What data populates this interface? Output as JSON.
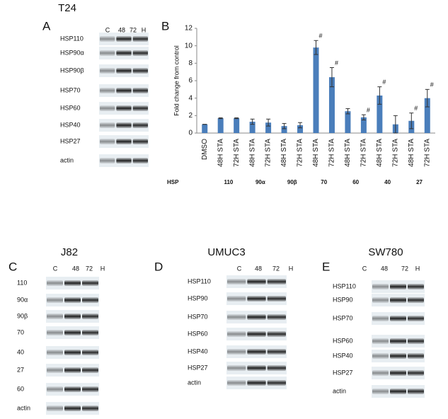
{
  "panels": [
    {
      "letter": "A",
      "title": "T24",
      "lanes": [
        "C",
        "48",
        "72",
        "H"
      ],
      "rows": [
        "HSP110",
        "HSP90α",
        "HSP90β",
        "HSP70",
        "HSP60",
        "HSP40",
        "HSP27",
        "actin"
      ]
    },
    {
      "letter": "C",
      "title": "J82",
      "lanes": [
        "C",
        "48",
        "72",
        "H"
      ],
      "rows": [
        "110",
        "90α",
        "90β",
        "70",
        "40",
        "27",
        "60",
        "actin"
      ]
    },
    {
      "letter": "D",
      "title": "UMUC3",
      "lanes": [
        "C",
        "48",
        "72",
        "H"
      ],
      "rows": [
        "HSP110",
        "HSP90",
        "HSP70",
        "HSP60",
        "HSP40",
        "HSP27",
        "actin"
      ]
    },
    {
      "letter": "E",
      "title": "SW780",
      "lanes": [
        "C",
        "48",
        "72",
        "H"
      ],
      "rows": [
        "HSP110",
        "HSP90",
        "HSP70",
        "HSP60",
        "HSP40",
        "HSP27",
        "actin"
      ]
    }
  ],
  "chart_data": {
    "type": "bar",
    "panel_letter": "B",
    "y_label": "Fold change from control",
    "categories": [
      "DMSO",
      "48H STA",
      "72H STA",
      "48H STA",
      "72H STA",
      "48H STA",
      "72H STA",
      "48H STA",
      "72H STA",
      "48H STA",
      "72H STA",
      "48H STA",
      "72H STA",
      "48H STA",
      "72H STA"
    ],
    "values": [
      1.0,
      1.7,
      1.7,
      1.3,
      1.2,
      0.8,
      0.9,
      9.8,
      6.4,
      2.5,
      1.8,
      4.3,
      1.0,
      1.4,
      4.0
    ],
    "errors": [
      0,
      0.05,
      0.05,
      0.3,
      0.4,
      0.3,
      0.3,
      0.8,
      1.1,
      0.3,
      0.3,
      1.0,
      1.0,
      0.9,
      1.0
    ],
    "significance_marker": "#",
    "significant": [
      false,
      false,
      false,
      false,
      false,
      false,
      false,
      true,
      true,
      false,
      true,
      true,
      false,
      true,
      true
    ],
    "group_axis_label": "HSP",
    "groups": [
      "110",
      "90α",
      "90β",
      "70",
      "60",
      "40",
      "27"
    ],
    "color": "#4a7ebb",
    "ylim": [
      0,
      12
    ],
    "yticks": [
      0,
      2,
      4,
      6,
      8,
      10,
      12
    ],
    "grid": false
  }
}
